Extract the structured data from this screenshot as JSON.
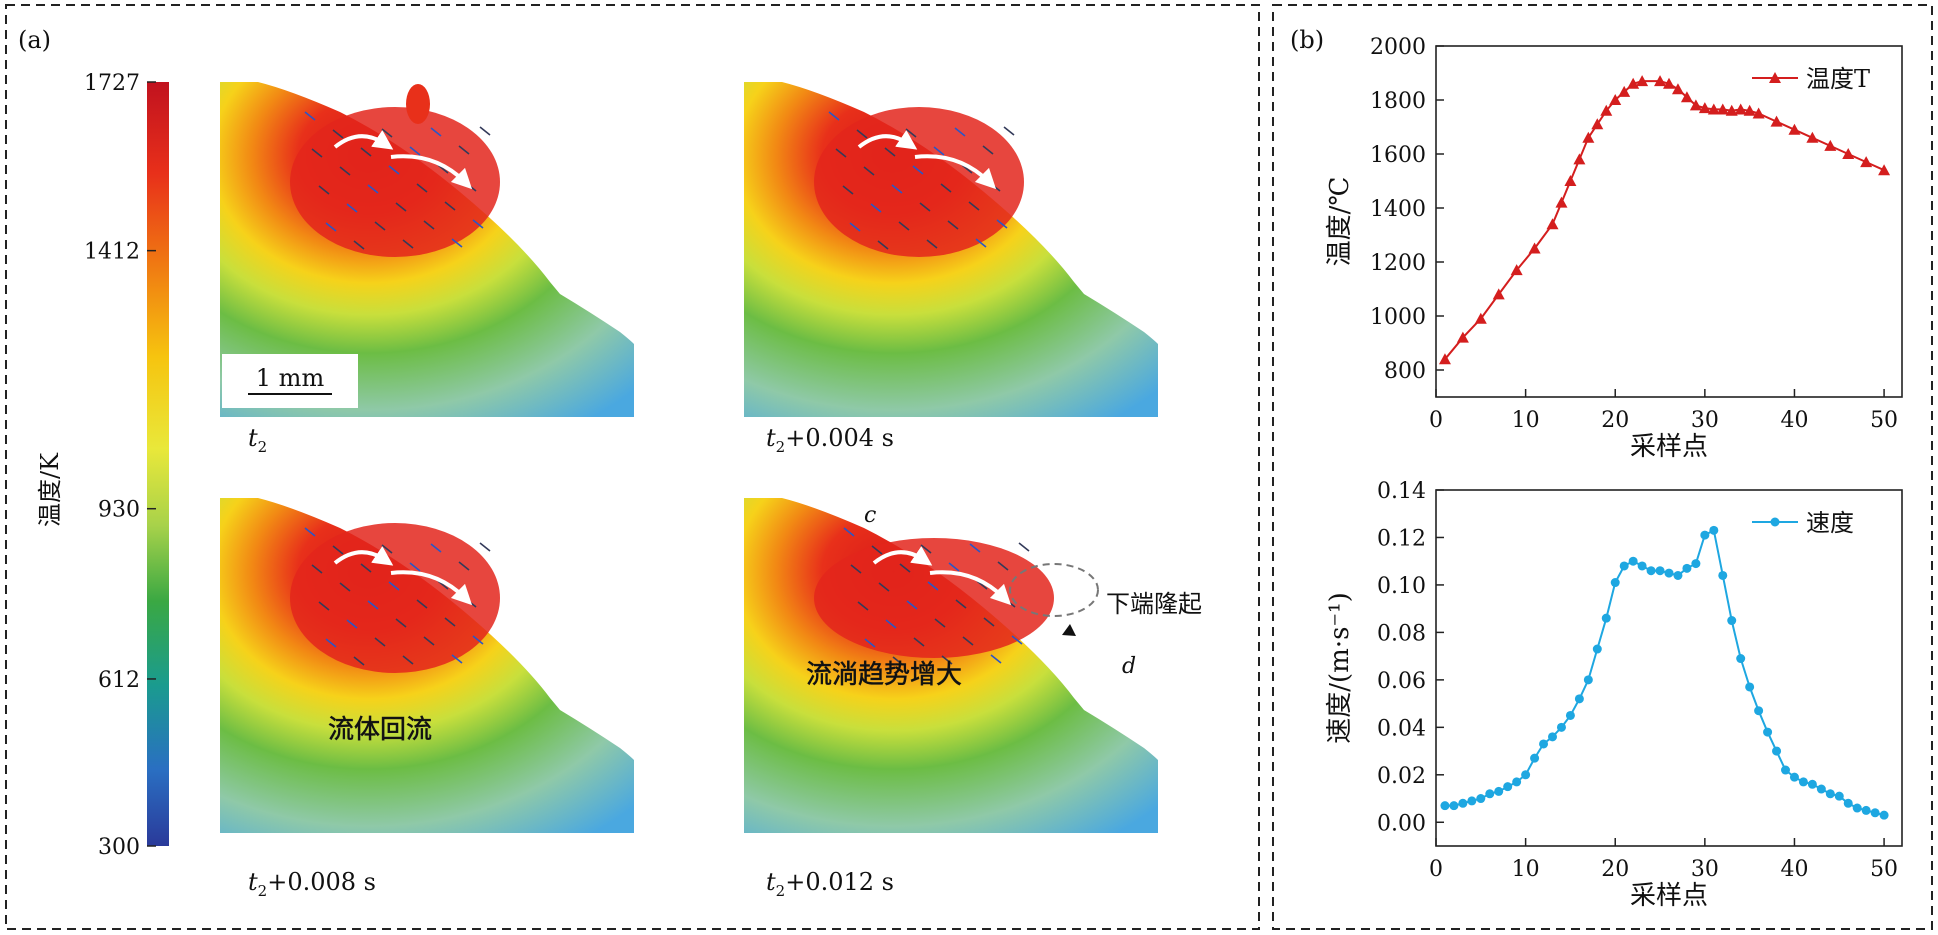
{
  "panel_a": {
    "label": "(a)",
    "colorbar": {
      "title": "温度/K",
      "ticks": [
        "1727",
        "1412",
        "930",
        "612",
        "300"
      ],
      "tick_values": [
        1727,
        1412,
        930,
        612,
        300
      ],
      "colors": [
        "#c1121f",
        "#e8301a",
        "#f07a12",
        "#f6c40f",
        "#e9e83a",
        "#8ec63f",
        "#3aa843",
        "#1a9b8f",
        "#2a6fc2",
        "#2a3a9a"
      ]
    },
    "scale_bar": "1 mm",
    "frames": [
      {
        "time_t": "t",
        "time_sub": "2",
        "time_rest": "",
        "annotation": ""
      },
      {
        "time_t": "t",
        "time_sub": "2",
        "time_rest": "+0.004 s",
        "annotation": ""
      },
      {
        "time_t": "t",
        "time_sub": "2",
        "time_rest": "+0.008 s",
        "annotation": "流体回流"
      },
      {
        "time_t": "t",
        "time_sub": "2",
        "time_rest": "+0.012 s",
        "annotation": "流淌趋势增大"
      }
    ],
    "point_c": "c",
    "point_d": "d",
    "callout": "下端隆起"
  },
  "panel_b": {
    "label": "(b)"
  },
  "chart_data": [
    {
      "type": "line",
      "xlabel": "采样点",
      "ylabel": "温度/℃",
      "xlim": [
        0,
        52
      ],
      "ylim": [
        700,
        2000
      ],
      "xticks": [
        0,
        10,
        20,
        30,
        40,
        50
      ],
      "yticks": [
        800,
        1000,
        1200,
        1400,
        1600,
        1800,
        2000
      ],
      "legend": "top-right",
      "grid": false,
      "series": [
        {
          "name": "温度T",
          "color": "#d41e1e",
          "marker": "triangle",
          "x": [
            1,
            3,
            5,
            7,
            9,
            11,
            13,
            14,
            15,
            16,
            17,
            18,
            19,
            20,
            21,
            22,
            23,
            25,
            26,
            27,
            28,
            29,
            30,
            31,
            32,
            33,
            34,
            35,
            36,
            38,
            40,
            42,
            44,
            46,
            48,
            50
          ],
          "y": [
            840,
            920,
            990,
            1080,
            1170,
            1250,
            1340,
            1420,
            1500,
            1580,
            1660,
            1710,
            1760,
            1800,
            1830,
            1860,
            1870,
            1870,
            1860,
            1840,
            1810,
            1780,
            1770,
            1765,
            1765,
            1760,
            1765,
            1760,
            1750,
            1720,
            1690,
            1660,
            1630,
            1600,
            1570,
            1540
          ]
        }
      ]
    },
    {
      "type": "line",
      "xlabel": "采样点",
      "ylabel": "速度/(m·s⁻¹)",
      "xlim": [
        0,
        52
      ],
      "ylim": [
        -0.01,
        0.14
      ],
      "xticks": [
        0,
        10,
        20,
        30,
        40,
        50
      ],
      "yticks": [
        0.0,
        0.02,
        0.04,
        0.06,
        0.08,
        0.1,
        0.12,
        0.14
      ],
      "legend": "top-right",
      "grid": false,
      "series": [
        {
          "name": "速度",
          "color": "#1ea7e1",
          "marker": "circle",
          "x": [
            1,
            2,
            3,
            4,
            5,
            6,
            7,
            8,
            9,
            10,
            11,
            12,
            13,
            14,
            15,
            16,
            17,
            18,
            19,
            20,
            21,
            22,
            23,
            24,
            25,
            26,
            27,
            28,
            29,
            30,
            31,
            32,
            33,
            34,
            35,
            36,
            37,
            38,
            39,
            40,
            41,
            42,
            43,
            44,
            45,
            46,
            47,
            48,
            49,
            50
          ],
          "y": [
            0.007,
            0.007,
            0.008,
            0.009,
            0.01,
            0.012,
            0.013,
            0.015,
            0.017,
            0.02,
            0.027,
            0.033,
            0.036,
            0.04,
            0.045,
            0.052,
            0.06,
            0.073,
            0.086,
            0.101,
            0.108,
            0.11,
            0.108,
            0.106,
            0.106,
            0.105,
            0.104,
            0.107,
            0.109,
            0.121,
            0.123,
            0.104,
            0.085,
            0.069,
            0.057,
            0.047,
            0.038,
            0.03,
            0.022,
            0.019,
            0.017,
            0.016,
            0.014,
            0.012,
            0.011,
            0.008,
            0.006,
            0.005,
            0.004,
            0.003
          ]
        }
      ]
    }
  ]
}
